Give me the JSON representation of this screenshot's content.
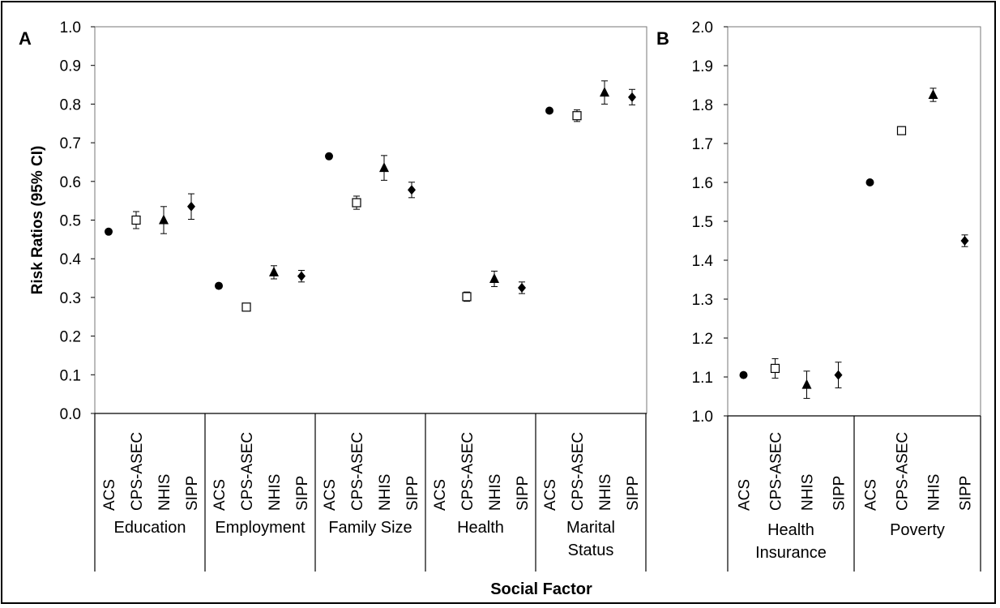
{
  "chart_data": [
    {
      "type": "scatter",
      "panel_label": "A",
      "ylabel": "Risk Ratios (95% CI)",
      "ylim": [
        0,
        1
      ],
      "yticks": [
        "0.0",
        "0.1",
        "0.2",
        "0.3",
        "0.4",
        "0.5",
        "0.6",
        "0.7",
        "0.8",
        "0.9",
        "1.0"
      ],
      "grid": false,
      "markers": {
        "ACS": "circle",
        "CPS-ASEC": "open-square",
        "NHIS": "triangle",
        "SIPP": "diamond"
      },
      "groups": [
        {
          "label": "Education",
          "points": [
            {
              "survey": "ACS",
              "value": 0.47,
              "lo": 0.465,
              "hi": 0.475
            },
            {
              "survey": "CPS-ASEC",
              "value": 0.5,
              "lo": 0.478,
              "hi": 0.522
            },
            {
              "survey": "NHIS",
              "value": 0.5,
              "lo": 0.465,
              "hi": 0.535
            },
            {
              "survey": "SIPP",
              "value": 0.535,
              "lo": 0.502,
              "hi": 0.568
            }
          ]
        },
        {
          "label": "Employment",
          "points": [
            {
              "survey": "ACS",
              "value": 0.33,
              "lo": 0.326,
              "hi": 0.334
            },
            {
              "survey": "CPS-ASEC",
              "value": 0.275,
              "lo": 0.265,
              "hi": 0.285
            },
            {
              "survey": "NHIS",
              "value": 0.365,
              "lo": 0.348,
              "hi": 0.382
            },
            {
              "survey": "SIPP",
              "value": 0.355,
              "lo": 0.34,
              "hi": 0.37
            }
          ]
        },
        {
          "label": "Family Size",
          "points": [
            {
              "survey": "ACS",
              "value": 0.665,
              "lo": 0.66,
              "hi": 0.67
            },
            {
              "survey": "CPS-ASEC",
              "value": 0.545,
              "lo": 0.528,
              "hi": 0.562
            },
            {
              "survey": "NHIS",
              "value": 0.635,
              "lo": 0.603,
              "hi": 0.667
            },
            {
              "survey": "SIPP",
              "value": 0.578,
              "lo": 0.558,
              "hi": 0.598
            }
          ]
        },
        {
          "label": "Health",
          "points": [
            {
              "survey": "ACS",
              "value": null,
              "lo": null,
              "hi": null
            },
            {
              "survey": "CPS-ASEC",
              "value": 0.302,
              "lo": 0.29,
              "hi": 0.314
            },
            {
              "survey": "NHIS",
              "value": 0.348,
              "lo": 0.328,
              "hi": 0.368
            },
            {
              "survey": "SIPP",
              "value": 0.325,
              "lo": 0.31,
              "hi": 0.34
            }
          ]
        },
        {
          "label": "Marital Status",
          "label_lines": [
            "Marital",
            "Status"
          ],
          "points": [
            {
              "survey": "ACS",
              "value": 0.783,
              "lo": 0.779,
              "hi": 0.787
            },
            {
              "survey": "CPS-ASEC",
              "value": 0.77,
              "lo": 0.755,
              "hi": 0.785
            },
            {
              "survey": "NHIS",
              "value": 0.83,
              "lo": 0.8,
              "hi": 0.86
            },
            {
              "survey": "SIPP",
              "value": 0.818,
              "lo": 0.798,
              "hi": 0.838
            }
          ]
        }
      ]
    },
    {
      "type": "scatter",
      "panel_label": "B",
      "ylim": [
        1,
        2
      ],
      "yticks": [
        "1.0",
        "1.1",
        "1.2",
        "1.3",
        "1.4",
        "1.5",
        "1.6",
        "1.7",
        "1.8",
        "1.9",
        "2.0"
      ],
      "grid": false,
      "groups": [
        {
          "label": "Health Insurance",
          "label_lines": [
            "Health",
            "Insurance"
          ],
          "points": [
            {
              "survey": "ACS",
              "value": 1.105,
              "lo": 1.1,
              "hi": 1.11
            },
            {
              "survey": "CPS-ASEC",
              "value": 1.122,
              "lo": 1.097,
              "hi": 1.147
            },
            {
              "survey": "NHIS",
              "value": 1.08,
              "lo": 1.045,
              "hi": 1.115
            },
            {
              "survey": "SIPP",
              "value": 1.105,
              "lo": 1.072,
              "hi": 1.138
            }
          ]
        },
        {
          "label": "Poverty",
          "points": [
            {
              "survey": "ACS",
              "value": 1.6,
              "lo": 1.597,
              "hi": 1.603
            },
            {
              "survey": "CPS-ASEC",
              "value": 1.733,
              "lo": 1.723,
              "hi": 1.743
            },
            {
              "survey": "NHIS",
              "value": 1.825,
              "lo": 1.808,
              "hi": 1.842
            },
            {
              "survey": "SIPP",
              "value": 1.45,
              "lo": 1.435,
              "hi": 1.465
            }
          ]
        }
      ]
    }
  ],
  "xlabel": "Social Factor"
}
